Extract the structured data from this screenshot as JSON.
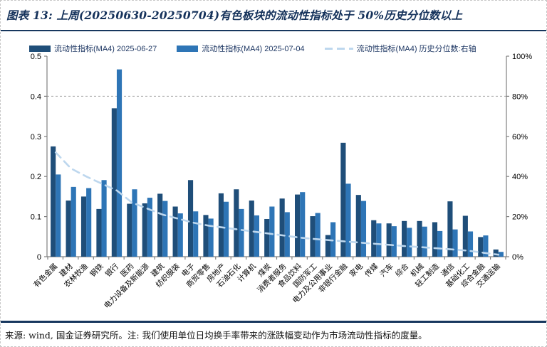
{
  "header": {
    "title": "图表 13: 上周(20250630-20250704)有色板块的流动性指标处于 50%历史分位数以上"
  },
  "footer": {
    "text": "来源: wind, 国金证券研究所。注: 我们使用单位日均换手率带来的涨跌幅变动作为市场流动性指标的度量。"
  },
  "colors": {
    "series_dark": "#1f4e79",
    "series_light": "#2e75b6",
    "series_line": "#bdd7ee",
    "axis": "#808080",
    "gridline": "#a6a6a6",
    "rule": "#17375e",
    "text": "#000000"
  },
  "chart_data": {
    "type": "bar",
    "note": "dual-axis combo: two bar series on left axis, dashed percentile line on right axis",
    "categories": [
      "有色金属",
      "建材",
      "农林牧渔",
      "钢铁",
      "银行",
      "医药",
      "电力设备及新能源",
      "建筑",
      "纺织服装",
      "电子",
      "商贸零售",
      "房地产",
      "石油石化",
      "计算机",
      "煤炭",
      "消费者服务",
      "食品饮料",
      "国防军工",
      "电力及公用事业",
      "非银行金融",
      "家电",
      "传媒",
      "汽车",
      "综合",
      "机械",
      "轻工制造",
      "通信",
      "基础化工",
      "综合金融",
      "交通运输"
    ],
    "series": [
      {
        "name": "流动性指标(MA4) 2025-06-27",
        "type": "bar",
        "axis": "left",
        "values": [
          0.275,
          0.14,
          0.15,
          0.119,
          0.37,
          0.132,
          0.133,
          0.157,
          0.125,
          0.191,
          0.104,
          0.158,
          0.168,
          0.14,
          0.094,
          0.145,
          0.155,
          0.101,
          0.054,
          0.284,
          0.154,
          0.091,
          0.083,
          0.089,
          0.089,
          0.086,
          0.138,
          0.102,
          0.049,
          0.018
        ]
      },
      {
        "name": "流动性指标(MA4) 2025-07-04",
        "type": "bar",
        "axis": "left",
        "values": [
          0.205,
          0.174,
          0.171,
          0.191,
          0.467,
          0.168,
          0.147,
          0.139,
          0.108,
          0.113,
          0.095,
          0.137,
          0.119,
          0.103,
          0.125,
          0.111,
          0.161,
          0.109,
          0.086,
          0.182,
          0.139,
          0.083,
          0.076,
          0.072,
          0.075,
          0.064,
          0.068,
          0.063,
          0.053,
          0.012
        ]
      },
      {
        "name": "流动性指标(MA4) 历史分位数:右轴",
        "type": "line",
        "axis": "right",
        "values": [
          52,
          44,
          40,
          36.5,
          33,
          27,
          24,
          21,
          19,
          17,
          15.5,
          14.5,
          13.5,
          12.5,
          11.5,
          10.5,
          9.5,
          8.8,
          8.2,
          7.6,
          7.0,
          6.4,
          5.8,
          5.2,
          4.7,
          4.2,
          3.6,
          3.0,
          2.0,
          1.0
        ]
      }
    ],
    "left_axis": {
      "min": 0,
      "max": 0.5,
      "tick_values": [
        0,
        0.1,
        0.2,
        0.3,
        0.4,
        0.5
      ],
      "tick_labels": [
        "0",
        "0.1",
        "0.2",
        "0.3",
        "0.4",
        "0.5"
      ]
    },
    "right_axis": {
      "min": 0,
      "max": 100,
      "tick_values": [
        0,
        20,
        40,
        60,
        80,
        100
      ],
      "tick_labels": [
        "0%",
        "20%",
        "40%",
        "60%",
        "80%",
        "100%"
      ]
    },
    "gridline_left_value": 0.4,
    "legend_position": "top",
    "grid": "single dashed line at 0.4 / 80%"
  }
}
